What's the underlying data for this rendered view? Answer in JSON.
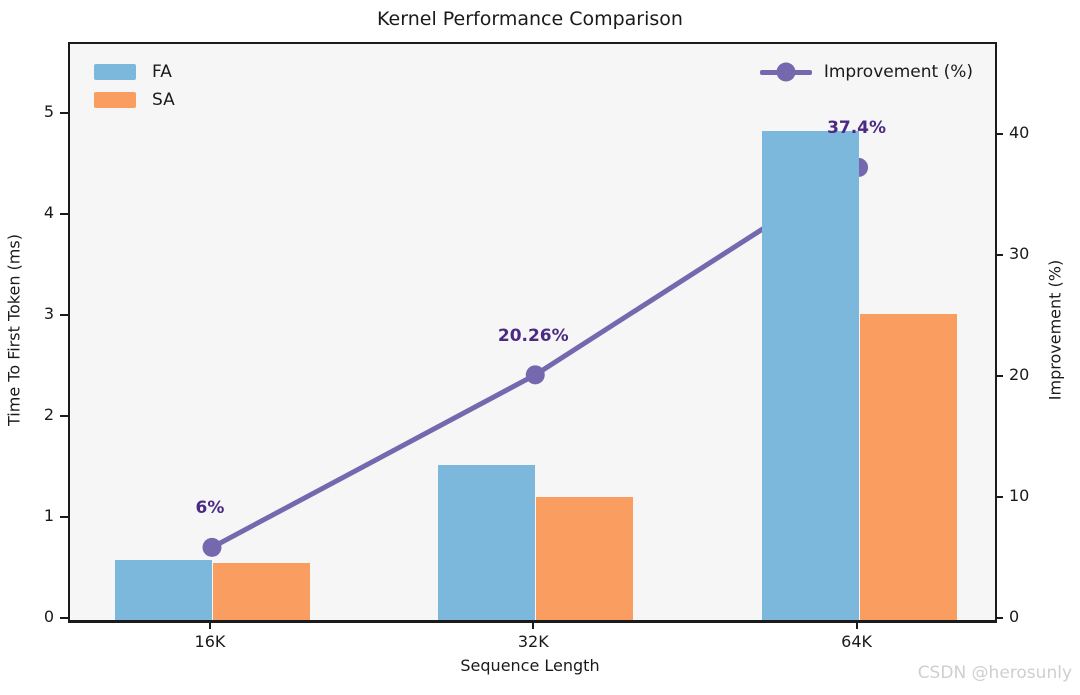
{
  "title": "Kernel Performance Comparison",
  "watermark": "CSDN @herosunly",
  "colors": {
    "fa_bar": "#7bb8dc",
    "sa_bar": "#f99d60",
    "line": "#7568af",
    "annotation": "#4b2a84",
    "plot_bg": "#f6f6f6",
    "spine": "#1b1b1b",
    "text": "#1a1a1a",
    "watermark": "#cfcfcf"
  },
  "chart_data": {
    "type": "bar",
    "title": "Kernel Performance Comparison",
    "categories": [
      "16K",
      "32K",
      "64K"
    ],
    "series": [
      {
        "name": "FA",
        "type": "bar",
        "axis": "left",
        "values": [
          0.59,
          1.53,
          4.84
        ]
      },
      {
        "name": "SA",
        "type": "bar",
        "axis": "left",
        "values": [
          0.56,
          1.22,
          3.03
        ]
      },
      {
        "name": "Improvement (%)",
        "type": "line",
        "axis": "right",
        "values": [
          6,
          20.26,
          37.4
        ]
      }
    ],
    "annotations": [
      "6%",
      "20.26%",
      "37.4%"
    ],
    "xlabel": "Sequence Length",
    "ylabel_left": "Time To First Token (ms)",
    "ylabel_right": "Improvement (%)",
    "ylim_left": [
      0,
      5.7
    ],
    "ylim_right": [
      0,
      47.6
    ],
    "yticks_left": [
      0,
      1,
      2,
      3,
      4,
      5
    ],
    "yticks_right": [
      0,
      10,
      20,
      30,
      40
    ],
    "grid": false,
    "legend_positions": [
      "upper left",
      "upper right"
    ]
  }
}
